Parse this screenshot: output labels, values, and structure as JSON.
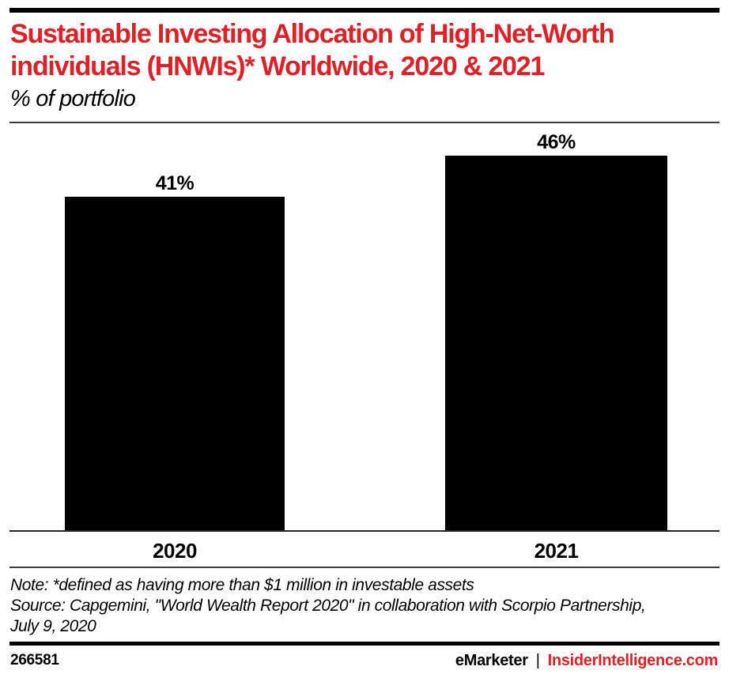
{
  "header": {
    "title_line1": "Sustainable Investing Allocation of High-Net-Worth",
    "title_line2": "individuals (HNWIs)* Worldwide, 2020 & 2021",
    "subtitle": "% of portfolio",
    "title_color": "#e12025"
  },
  "chart_data": {
    "type": "bar",
    "title": "Sustainable Investing Allocation of High-Net-Worth individuals (HNWIs)* Worldwide, 2020 & 2021",
    "subtitle": "% of portfolio",
    "categories": [
      "2020",
      "2021"
    ],
    "values": [
      41,
      46
    ],
    "value_labels": [
      "41%",
      "46%"
    ],
    "xlabel": "",
    "ylabel": "% of portfolio",
    "ylim": [
      0,
      50
    ],
    "bar_color": "#000000",
    "grid": false,
    "legend": false
  },
  "notes": {
    "note_line": "Note: *defined as having more than $1 million in investable assets",
    "source_line1": "Source: Capgemini, \"World Wealth Report 2020\" in collaboration with Scorpio Partnership,",
    "source_line2": "July 9, 2020"
  },
  "footer": {
    "chart_id": "266581",
    "brand": "eMarketer",
    "divider": "|",
    "site": "InsiderIntelligence.com",
    "site_color": "#e12025"
  }
}
